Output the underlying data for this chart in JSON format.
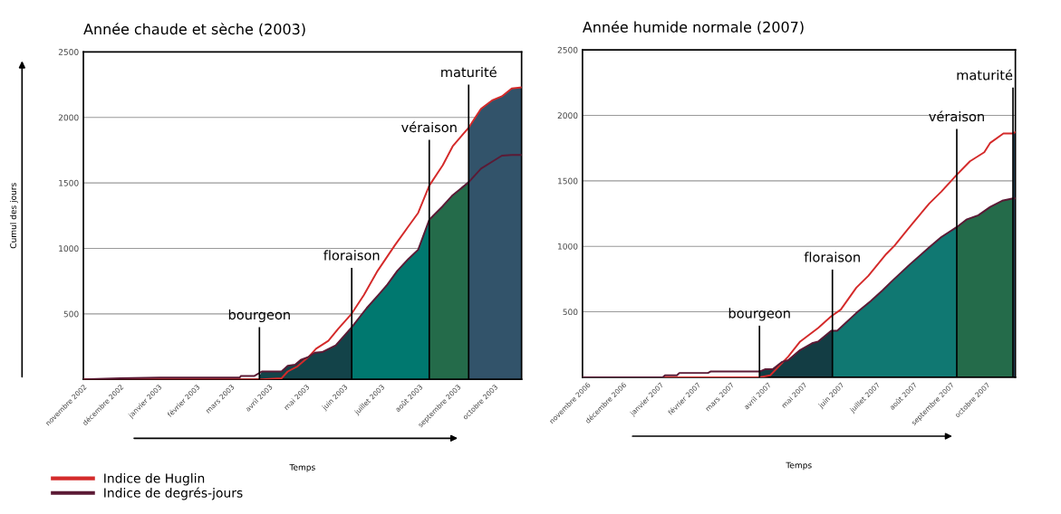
{
  "chart_data": [
    {
      "type": "line",
      "title": "Année chaude et sèche (2003)",
      "xlabel": "Temps",
      "ylabel": "Cumul des jours",
      "xlim": [
        "2002-11-01",
        "2003-10-23"
      ],
      "ylim": [
        0,
        2500
      ],
      "yticks": [
        500,
        1000,
        1500,
        2000,
        2500
      ],
      "xticks": [
        {
          "value": "2002-11-01",
          "label": "novembre 2002"
        },
        {
          "value": "2002-12-01",
          "label": "décembre 2002"
        },
        {
          "value": "2003-01-01",
          "label": "janvier 2003"
        },
        {
          "value": "2003-02-01",
          "label": "février 2003"
        },
        {
          "value": "2003-03-01",
          "label": "mars 2003"
        },
        {
          "value": "2003-04-01",
          "label": "avril 2003"
        },
        {
          "value": "2003-05-01",
          "label": "mai 2003"
        },
        {
          "value": "2003-06-01",
          "label": "juin 2003"
        },
        {
          "value": "2003-07-01",
          "label": "juillet 2003"
        },
        {
          "value": "2003-08-01",
          "label": "août 2003"
        },
        {
          "value": "2003-09-01",
          "label": "septembre 2003"
        },
        {
          "value": "2003-10-01",
          "label": "octobre 2003"
        }
      ],
      "grid": "y",
      "legend": "bottom",
      "series": [
        {
          "type": "area",
          "color": "#134349",
          "x": [
            "2003-03-24",
            "2003-03-26",
            "2003-04-11",
            "2003-04-16",
            "2003-04-22",
            "2003-04-27",
            "2003-05-03",
            "2003-05-08",
            "2003-05-14",
            "2003-05-25",
            "2003-06-07"
          ],
          "values": [
            26,
            60,
            60,
            104,
            112,
            151,
            172,
            203,
            208,
            260,
            398
          ]
        },
        {
          "type": "area",
          "color": "#00786f",
          "x": [
            "2003-06-07",
            "2003-06-19",
            "2003-06-30",
            "2003-07-06",
            "2003-07-14",
            "2003-07-23",
            "2003-07-31",
            "2003-08-09"
          ],
          "values": [
            398,
            542,
            659,
            724,
            828,
            919,
            990,
            1219
          ]
        },
        {
          "type": "area",
          "color": "#246b4a",
          "x": [
            "2003-08-09",
            "2003-08-20",
            "2003-08-28",
            "2003-09-10"
          ],
          "values": [
            1219,
            1323,
            1406,
            1505
          ]
        },
        {
          "type": "area",
          "color": "#32536a",
          "x": [
            "2003-09-10",
            "2003-09-20",
            "2003-09-29",
            "2003-10-07",
            "2003-10-15",
            "2003-10-23"
          ],
          "values": [
            1922,
            2065,
            2130,
            2161,
            2221,
            2229
          ]
        },
        {
          "name": "Indice de Huglin",
          "color": "#d42a2a",
          "x": [
            "2002-11-01",
            "2003-03-26",
            "2003-04-11",
            "2003-04-16",
            "2003-04-24",
            "2003-05-03",
            "2003-05-09",
            "2003-05-19",
            "2003-05-27",
            "2003-06-07",
            "2003-06-17",
            "2003-06-28",
            "2003-07-12",
            "2003-07-23",
            "2003-07-31",
            "2003-08-09",
            "2003-08-20",
            "2003-08-28",
            "2003-09-10",
            "2003-09-20",
            "2003-09-29",
            "2003-10-07",
            "2003-10-15",
            "2003-10-23"
          ],
          "values": [
            0,
            0,
            8,
            60,
            99,
            172,
            234,
            294,
            385,
            502,
            646,
            828,
            1023,
            1167,
            1271,
            1479,
            1635,
            1779,
            1922,
            2065,
            2130,
            2161,
            2221,
            2229
          ]
        },
        {
          "name": "Indice de degrés-jours",
          "color": "#5b1a35",
          "x": [
            "2002-11-01",
            "2002-12-01",
            "2003-01-02",
            "2003-03-08",
            "2003-03-09",
            "2003-03-20",
            "2003-03-26",
            "2003-04-11",
            "2003-04-16",
            "2003-04-22",
            "2003-04-27",
            "2003-05-03",
            "2003-05-08",
            "2003-05-14",
            "2003-05-25",
            "2003-06-07",
            "2003-06-19",
            "2003-06-30",
            "2003-07-06",
            "2003-07-14",
            "2003-07-23",
            "2003-07-31",
            "2003-08-09",
            "2003-08-20",
            "2003-08-28",
            "2003-09-10",
            "2003-09-20",
            "2003-09-29",
            "2003-10-07",
            "2003-10-15",
            "2003-10-23"
          ],
          "values": [
            0,
            8,
            13,
            13,
            26,
            26,
            60,
            60,
            104,
            112,
            151,
            172,
            203,
            208,
            260,
            398,
            542,
            659,
            724,
            828,
            919,
            990,
            1219,
            1323,
            1406,
            1505,
            1609,
            1661,
            1708,
            1713,
            1713
          ]
        }
      ],
      "ref_lines": [
        {
          "axis": "x",
          "value": "2003-03-24",
          "label": "bourgeon"
        },
        {
          "axis": "x",
          "value": "2003-06-07",
          "label": "floraison"
        },
        {
          "axis": "x",
          "value": "2003-08-09",
          "label": "véraison"
        },
        {
          "axis": "x",
          "value": "2003-09-10",
          "label": "maturité"
        }
      ]
    },
    {
      "type": "line",
      "title": "Année humide normale (2007)",
      "xlabel": "Temps",
      "xlim": [
        "2006-10-28",
        "2007-10-25"
      ],
      "ylim": [
        0,
        2500
      ],
      "yticks": [
        500,
        1000,
        1500,
        2000,
        2500
      ],
      "xticks": [
        {
          "value": "2006-11-01",
          "label": "novembre 2006"
        },
        {
          "value": "2006-12-01",
          "label": "décembre 2006"
        },
        {
          "value": "2007-01-01",
          "label": "janvier 2007"
        },
        {
          "value": "2007-02-01",
          "label": "février 2007"
        },
        {
          "value": "2007-03-01",
          "label": "mars 2007"
        },
        {
          "value": "2007-04-01",
          "label": "avril 2007"
        },
        {
          "value": "2007-05-01",
          "label": "mai 2007"
        },
        {
          "value": "2007-06-01",
          "label": "juin 2007"
        },
        {
          "value": "2007-07-01",
          "label": "juillet 2007"
        },
        {
          "value": "2007-08-01",
          "label": "août 2007"
        },
        {
          "value": "2007-09-01",
          "label": "septembre 2007"
        },
        {
          "value": "2007-10-01",
          "label": "octobre 2007"
        }
      ],
      "grid": "y",
      "series": [
        {
          "type": "area",
          "color": "#133d44",
          "x": [
            "2007-03-25",
            "2007-03-30",
            "2007-04-05",
            "2007-04-13",
            "2007-04-18",
            "2007-04-28",
            "2007-05-08",
            "2007-05-13",
            "2007-05-24",
            "2007-05-25"
          ],
          "values": [
            44,
            62,
            62,
            118,
            131,
            208,
            260,
            273,
            355,
            355
          ]
        },
        {
          "type": "area",
          "color": "#107872",
          "x": [
            "2007-05-25",
            "2007-05-29",
            "2007-06-14",
            "2007-06-26",
            "2007-07-06",
            "2007-07-14",
            "2007-07-29",
            "2007-08-14",
            "2007-08-24",
            "2007-09-06"
          ],
          "values": [
            355,
            355,
            491,
            581,
            664,
            736,
            864,
            993,
            1070,
            1147
          ]
        },
        {
          "type": "area",
          "color": "#246b4a",
          "x": [
            "2007-09-06",
            "2007-09-14",
            "2007-09-24",
            "2007-10-04",
            "2007-10-14",
            "2007-10-23"
          ],
          "values": [
            1147,
            1204,
            1237,
            1301,
            1348,
            1366
          ]
        },
        {
          "type": "area",
          "color": "#32536a",
          "x": [
            "2007-10-23",
            "2007-10-25"
          ],
          "values": [
            1862,
            1872
          ]
        },
        {
          "color": "#d42a2a",
          "x": [
            "2006-10-28",
            "2007-03-25",
            "2007-04-03",
            "2007-04-18",
            "2007-04-28",
            "2007-05-13",
            "2007-05-24",
            "2007-06-01",
            "2007-06-14",
            "2007-06-24",
            "2007-07-09",
            "2007-07-16",
            "2007-08-01",
            "2007-08-14",
            "2007-08-24",
            "2007-09-06",
            "2007-09-17",
            "2007-09-29",
            "2007-10-04",
            "2007-10-15",
            "2007-10-23",
            "2007-10-25"
          ],
          "values": [
            0,
            0,
            15,
            157,
            273,
            376,
            466,
            517,
            684,
            774,
            941,
            1006,
            1186,
            1327,
            1417,
            1546,
            1649,
            1718,
            1790,
            1862,
            1862,
            1872
          ]
        },
        {
          "color": "#5b1a35",
          "x": [
            "2006-10-28",
            "2007-01-03",
            "2007-01-05",
            "2007-01-15",
            "2007-01-17",
            "2007-02-10",
            "2007-02-12",
            "2007-03-25",
            "2007-03-30",
            "2007-04-05",
            "2007-04-13",
            "2007-04-18",
            "2007-04-28",
            "2007-05-08",
            "2007-05-13",
            "2007-05-24",
            "2007-05-29",
            "2007-06-14",
            "2007-06-26",
            "2007-07-06",
            "2007-07-14",
            "2007-07-29",
            "2007-08-14",
            "2007-08-24",
            "2007-09-06",
            "2007-09-14",
            "2007-09-24",
            "2007-10-04",
            "2007-10-14",
            "2007-10-23",
            "2007-10-25"
          ],
          "values": [
            0,
            0,
            15,
            15,
            33,
            33,
            44,
            44,
            62,
            62,
            118,
            131,
            208,
            260,
            273,
            355,
            355,
            491,
            581,
            664,
            736,
            864,
            993,
            1070,
            1147,
            1204,
            1237,
            1301,
            1348,
            1366,
            1366
          ]
        }
      ],
      "ref_lines": [
        {
          "axis": "x",
          "value": "2007-03-25",
          "label": "bourgeon"
        },
        {
          "axis": "x",
          "value": "2007-05-25",
          "label": "floraison"
        },
        {
          "axis": "x",
          "value": "2007-09-06",
          "label": "véraison"
        },
        {
          "axis": "x",
          "value": "2007-10-23",
          "label": "maturité"
        }
      ]
    }
  ]
}
